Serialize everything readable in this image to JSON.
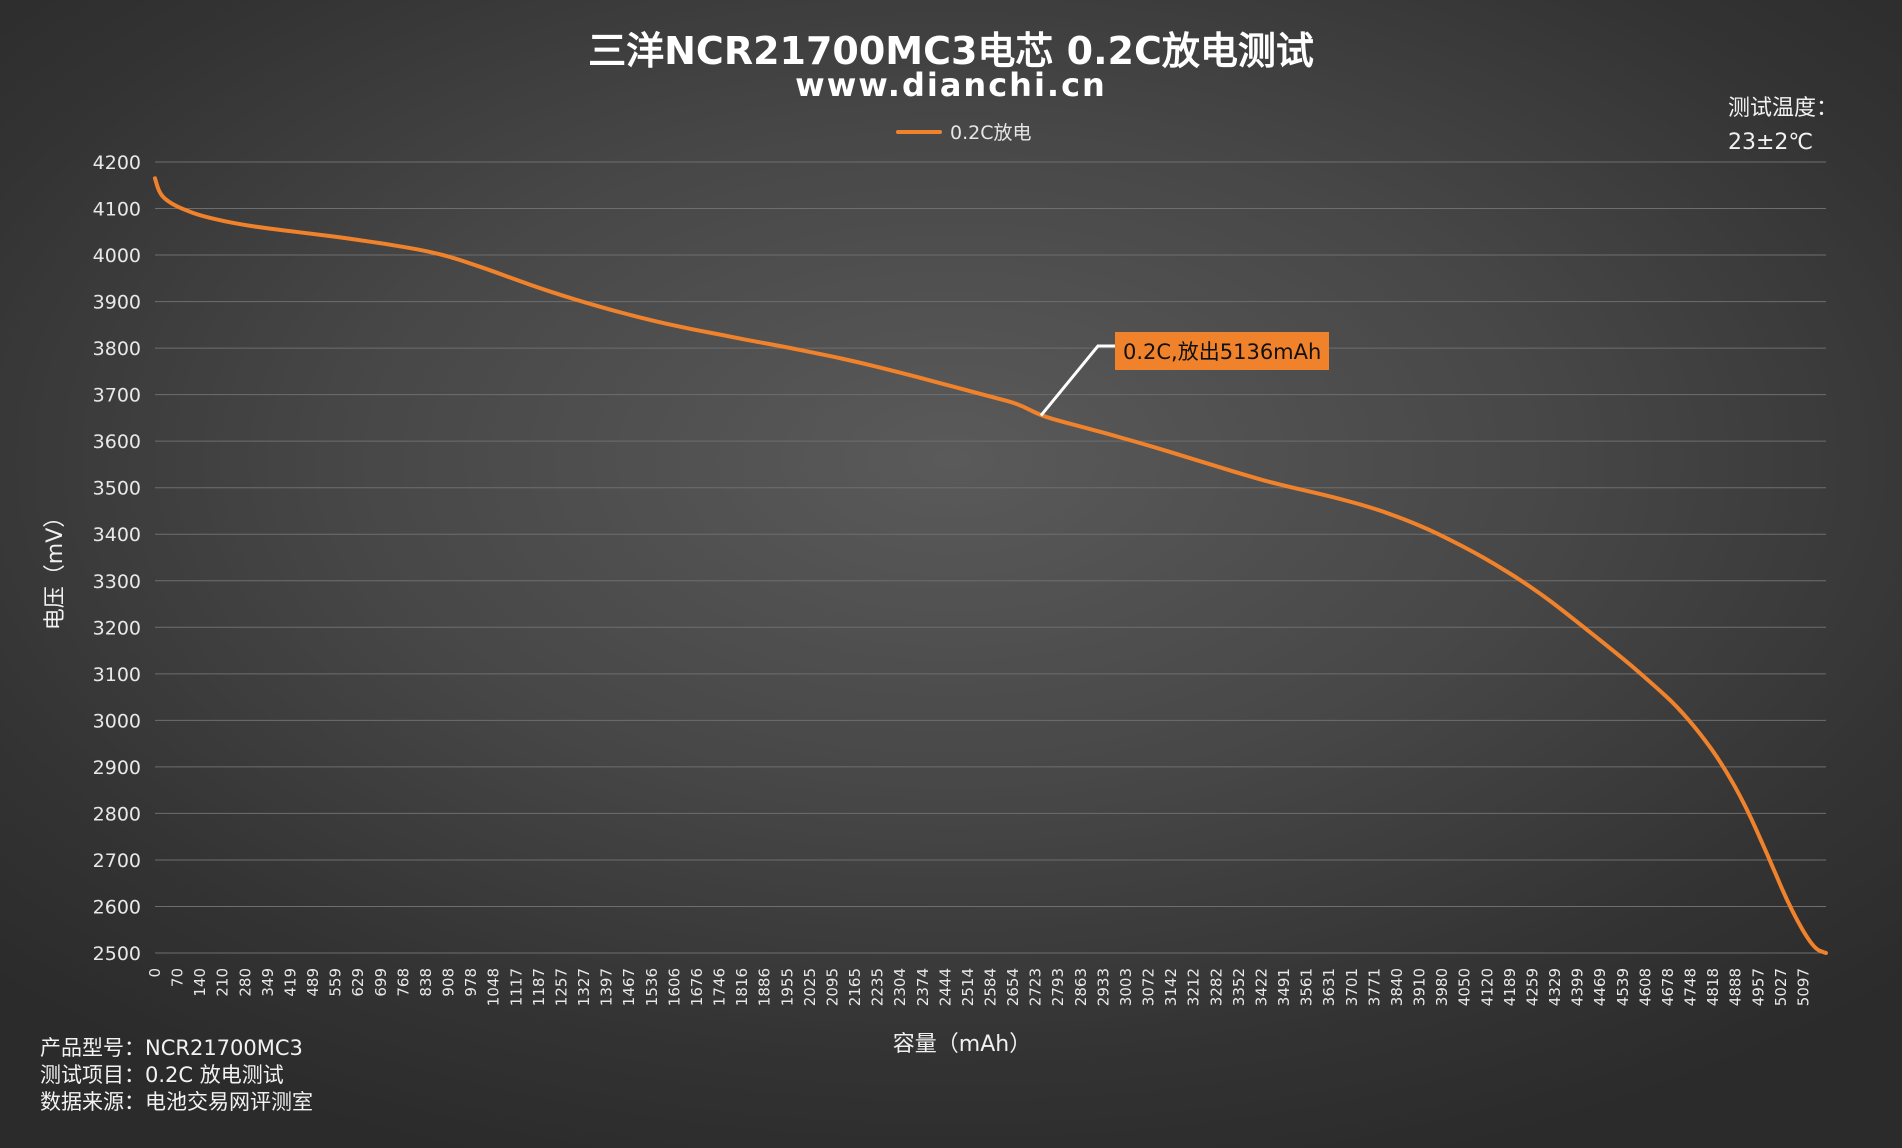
{
  "header": {
    "title": "三洋NCR21700MC3电芯 0.2C放电测试",
    "subtitle": "www.dianchi.cn"
  },
  "temperature": {
    "label": "测试温度：",
    "value": "23±2℃"
  },
  "footer": {
    "model_label": "产品型号：",
    "model_value": "NCR21700MC3",
    "test_label": "测试项目：",
    "test_value": "0.2C 放电测试",
    "source_label": "数据来源：",
    "source_value": "电池交易网评测室"
  },
  "annotation": {
    "text": "0.2C,放出5136mAh",
    "x": 2723,
    "y": 3655
  },
  "colors": {
    "series": "#f0822c",
    "grid": "#6e6e6e",
    "callout_bg": "#f0822c"
  },
  "chart_data": {
    "type": "line",
    "title": "三洋NCR21700MC3电芯 0.2C放电测试",
    "xlabel": "容量（mAh）",
    "ylabel": "电压（mV）",
    "ylim": [
      2500,
      4200
    ],
    "yticks": [
      4200,
      4100,
      4000,
      3900,
      3800,
      3700,
      3600,
      3500,
      3400,
      3300,
      3200,
      3100,
      3000,
      2900,
      2800,
      2700,
      2600,
      2500
    ],
    "xlim": [
      0,
      5136
    ],
    "xtick_labels": [
      "0",
      "70",
      "140",
      "210",
      "280",
      "349",
      "419",
      "489",
      "559",
      "629",
      "699",
      "768",
      "838",
      "908",
      "978",
      "1048",
      "1117",
      "1187",
      "1257",
      "1327",
      "1397",
      "1467",
      "1536",
      "1606",
      "1676",
      "1746",
      "1816",
      "1886",
      "1955",
      "2025",
      "2095",
      "2165",
      "2235",
      "2304",
      "2374",
      "2444",
      "2514",
      "2584",
      "2654",
      "2723",
      "2793",
      "2863",
      "2933",
      "3003",
      "3072",
      "3142",
      "3212",
      "3282",
      "3352",
      "3422",
      "3491",
      "3561",
      "3631",
      "3701",
      "3771",
      "3840",
      "3910",
      "3980",
      "4050",
      "4120",
      "4189",
      "4259",
      "4329",
      "4399",
      "4469",
      "4539",
      "4608",
      "4678",
      "4748",
      "4818",
      "4888",
      "4957",
      "5027",
      "5097"
    ],
    "grid": true,
    "legend_position": "top-center",
    "series": [
      {
        "name": "0.2C放电",
        "points": [
          [
            0,
            4165
          ],
          [
            15,
            4130
          ],
          [
            50,
            4110
          ],
          [
            100,
            4095
          ],
          [
            140,
            4085
          ],
          [
            210,
            4073
          ],
          [
            280,
            4064
          ],
          [
            349,
            4057
          ],
          [
            419,
            4051
          ],
          [
            489,
            4045
          ],
          [
            559,
            4039
          ],
          [
            629,
            4032
          ],
          [
            699,
            4025
          ],
          [
            768,
            4017
          ],
          [
            838,
            4008
          ],
          [
            908,
            3996
          ],
          [
            978,
            3980
          ],
          [
            1048,
            3963
          ],
          [
            1117,
            3945
          ],
          [
            1187,
            3928
          ],
          [
            1257,
            3912
          ],
          [
            1327,
            3897
          ],
          [
            1397,
            3883
          ],
          [
            1467,
            3870
          ],
          [
            1536,
            3858
          ],
          [
            1606,
            3847
          ],
          [
            1676,
            3837
          ],
          [
            1746,
            3828
          ],
          [
            1816,
            3818
          ],
          [
            1886,
            3809
          ],
          [
            1955,
            3800
          ],
          [
            2025,
            3790
          ],
          [
            2095,
            3780
          ],
          [
            2165,
            3769
          ],
          [
            2235,
            3757
          ],
          [
            2304,
            3745
          ],
          [
            2374,
            3732
          ],
          [
            2444,
            3719
          ],
          [
            2514,
            3706
          ],
          [
            2584,
            3693
          ],
          [
            2654,
            3680
          ],
          [
            2723,
            3655
          ],
          [
            2793,
            3641
          ],
          [
            2863,
            3628
          ],
          [
            2933,
            3615
          ],
          [
            3003,
            3601
          ],
          [
            3072,
            3587
          ],
          [
            3142,
            3572
          ],
          [
            3212,
            3557
          ],
          [
            3282,
            3542
          ],
          [
            3352,
            3527
          ],
          [
            3422,
            3513
          ],
          [
            3491,
            3501
          ],
          [
            3561,
            3490
          ],
          [
            3631,
            3478
          ],
          [
            3701,
            3465
          ],
          [
            3771,
            3450
          ],
          [
            3840,
            3432
          ],
          [
            3910,
            3412
          ],
          [
            3980,
            3388
          ],
          [
            4050,
            3363
          ],
          [
            4120,
            3335
          ],
          [
            4189,
            3305
          ],
          [
            4259,
            3272
          ],
          [
            4329,
            3235
          ],
          [
            4399,
            3196
          ],
          [
            4469,
            3157
          ],
          [
            4539,
            3117
          ],
          [
            4608,
            3075
          ],
          [
            4678,
            3030
          ],
          [
            4748,
            2973
          ],
          [
            4818,
            2905
          ],
          [
            4888,
            2818
          ],
          [
            4957,
            2710
          ],
          [
            5027,
            2595
          ],
          [
            5097,
            2510
          ],
          [
            5136,
            2500
          ]
        ]
      }
    ]
  }
}
